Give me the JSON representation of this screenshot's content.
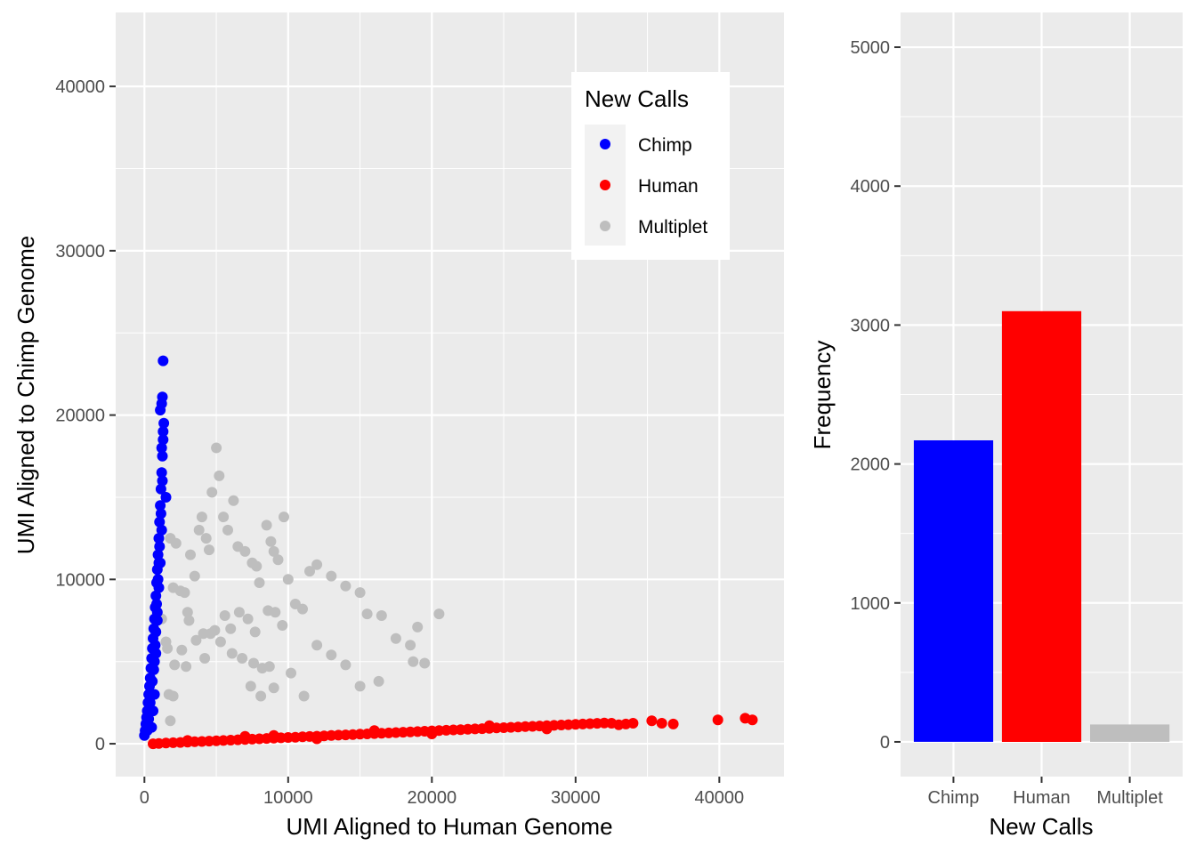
{
  "chart_data": [
    {
      "type": "scatter",
      "xlabel": "UMI Aligned to Human Genome",
      "ylabel": "UMI Aligned to Chimp Genome",
      "xlim": [
        -2000,
        44500
      ],
      "ylim": [
        -2000,
        44500
      ],
      "x_ticks": [
        0,
        10000,
        20000,
        30000,
        40000
      ],
      "y_ticks": [
        0,
        10000,
        20000,
        30000,
        40000
      ],
      "grid": true,
      "legend": {
        "title": "New Calls",
        "placement": "top-right",
        "entries": [
          "Chimp",
          "Human",
          "Multiplet"
        ]
      },
      "series": [
        {
          "name": "Chimp",
          "color": "#0000ff",
          "points": [
            [
              0,
              500
            ],
            [
              50,
              800
            ],
            [
              100,
              1200
            ],
            [
              150,
              1600
            ],
            [
              200,
              2000
            ],
            [
              250,
              2500
            ],
            [
              300,
              3000
            ],
            [
              350,
              3500
            ],
            [
              400,
              4000
            ],
            [
              450,
              4600
            ],
            [
              500,
              5200
            ],
            [
              550,
              5800
            ],
            [
              600,
              6400
            ],
            [
              650,
              7000
            ],
            [
              700,
              7600
            ],
            [
              750,
              8300
            ],
            [
              800,
              9000
            ],
            [
              850,
              9800
            ],
            [
              900,
              10600
            ],
            [
              950,
              11500
            ],
            [
              1000,
              12500
            ],
            [
              1050,
              13500
            ],
            [
              1100,
              14500
            ],
            [
              1150,
              15500
            ],
            [
              1200,
              16500
            ],
            [
              1250,
              17500
            ],
            [
              1300,
              18500
            ],
            [
              1350,
              19500
            ],
            [
              1100,
              20300
            ],
            [
              1200,
              20700
            ],
            [
              1250,
              21100
            ],
            [
              1300,
              23300
            ],
            [
              1500,
              15000
            ],
            [
              600,
              2000
            ],
            [
              700,
              3000
            ],
            [
              500,
              1000
            ],
            [
              800,
              5500
            ],
            [
              900,
              7500
            ],
            [
              1000,
              9500
            ],
            [
              1100,
              11000
            ],
            [
              1200,
              13000
            ],
            [
              300,
              1500
            ],
            [
              400,
              2500
            ],
            [
              650,
              4500
            ],
            [
              750,
              6000
            ],
            [
              850,
              8500
            ],
            [
              950,
              10000
            ],
            [
              1050,
              12000
            ],
            [
              1150,
              14000
            ],
            [
              1250,
              16000
            ],
            [
              1200,
              18000
            ],
            [
              1300,
              19000
            ],
            [
              200,
              800
            ],
            [
              450,
              3000
            ],
            [
              550,
              3800
            ],
            [
              700,
              5000
            ],
            [
              800,
              6800
            ],
            [
              900,
              8000
            ],
            [
              1000,
              11000
            ]
          ]
        },
        {
          "name": "Human",
          "color": "#ff0000",
          "points": [
            [
              600,
              0
            ],
            [
              1000,
              20
            ],
            [
              1500,
              40
            ],
            [
              2000,
              60
            ],
            [
              2500,
              80
            ],
            [
              3000,
              100
            ],
            [
              3500,
              120
            ],
            [
              4000,
              140
            ],
            [
              4500,
              160
            ],
            [
              5000,
              180
            ],
            [
              5500,
              200
            ],
            [
              6000,
              220
            ],
            [
              6500,
              240
            ],
            [
              7000,
              260
            ],
            [
              7500,
              280
            ],
            [
              8000,
              300
            ],
            [
              8500,
              320
            ],
            [
              9000,
              340
            ],
            [
              9500,
              360
            ],
            [
              10000,
              380
            ],
            [
              10500,
              400
            ],
            [
              11000,
              420
            ],
            [
              11500,
              440
            ],
            [
              12000,
              460
            ],
            [
              12500,
              480
            ],
            [
              13000,
              500
            ],
            [
              13500,
              520
            ],
            [
              14000,
              540
            ],
            [
              14500,
              560
            ],
            [
              15000,
              580
            ],
            [
              15500,
              600
            ],
            [
              16000,
              620
            ],
            [
              16500,
              640
            ],
            [
              17000,
              660
            ],
            [
              17500,
              680
            ],
            [
              18000,
              700
            ],
            [
              18500,
              720
            ],
            [
              19000,
              740
            ],
            [
              19500,
              760
            ],
            [
              20000,
              780
            ],
            [
              20500,
              800
            ],
            [
              21000,
              820
            ],
            [
              21500,
              840
            ],
            [
              22000,
              860
            ],
            [
              22500,
              880
            ],
            [
              23000,
              900
            ],
            [
              23500,
              920
            ],
            [
              24000,
              940
            ],
            [
              24500,
              960
            ],
            [
              25000,
              980
            ],
            [
              25500,
              1000
            ],
            [
              26000,
              1020
            ],
            [
              26500,
              1040
            ],
            [
              27000,
              1060
            ],
            [
              27500,
              1080
            ],
            [
              28000,
              1100
            ],
            [
              28500,
              1120
            ],
            [
              29000,
              1140
            ],
            [
              29500,
              1160
            ],
            [
              30000,
              1180
            ],
            [
              30500,
              1200
            ],
            [
              31000,
              1220
            ],
            [
              31500,
              1240
            ],
            [
              32000,
              1260
            ],
            [
              32500,
              1250
            ],
            [
              33000,
              1150
            ],
            [
              33500,
              1200
            ],
            [
              34000,
              1250
            ],
            [
              35300,
              1400
            ],
            [
              36000,
              1250
            ],
            [
              36800,
              1200
            ],
            [
              39900,
              1450
            ],
            [
              41800,
              1550
            ],
            [
              42300,
              1450
            ],
            [
              9000,
              500
            ],
            [
              12000,
              300
            ],
            [
              16000,
              800
            ],
            [
              20000,
              600
            ],
            [
              24000,
              1100
            ],
            [
              28000,
              900
            ],
            [
              7000,
              450
            ],
            [
              3000,
              200
            ]
          ]
        },
        {
          "name": "Multiplet",
          "color": "#bebebe",
          "points": [
            [
              1800,
              12500
            ],
            [
              2200,
              12200
            ],
            [
              2000,
              9500
            ],
            [
              2500,
              9300
            ],
            [
              2800,
              9200
            ],
            [
              3000,
              8000
            ],
            [
              3200,
              11500
            ],
            [
              3500,
              10200
            ],
            [
              3800,
              13000
            ],
            [
              4000,
              13800
            ],
            [
              4300,
              12500
            ],
            [
              4500,
              11800
            ],
            [
              4700,
              15300
            ],
            [
              5000,
              18000
            ],
            [
              5200,
              16300
            ],
            [
              5500,
              13800
            ],
            [
              5800,
              13000
            ],
            [
              6200,
              14800
            ],
            [
              6500,
              12000
            ],
            [
              7000,
              11700
            ],
            [
              7500,
              11000
            ],
            [
              7800,
              10800
            ],
            [
              8000,
              9800
            ],
            [
              8500,
              13300
            ],
            [
              8800,
              12300
            ],
            [
              9000,
              11700
            ],
            [
              9300,
              11200
            ],
            [
              9700,
              13800
            ],
            [
              10000,
              10000
            ],
            [
              10500,
              8500
            ],
            [
              11000,
              8200
            ],
            [
              11500,
              10500
            ],
            [
              12000,
              10900
            ],
            [
              13000,
              10200
            ],
            [
              14000,
              9600
            ],
            [
              15000,
              9200
            ],
            [
              15500,
              7900
            ],
            [
              16500,
              7800
            ],
            [
              17500,
              6400
            ],
            [
              18500,
              6000
            ],
            [
              19000,
              7100
            ],
            [
              20500,
              7900
            ],
            [
              4600,
              6700
            ],
            [
              4900,
              6900
            ],
            [
              5600,
              7800
            ],
            [
              6000,
              7000
            ],
            [
              6600,
              8000
            ],
            [
              7200,
              7600
            ],
            [
              7700,
              6800
            ],
            [
              8600,
              8100
            ],
            [
              9100,
              8000
            ],
            [
              9600,
              7200
            ],
            [
              2100,
              4800
            ],
            [
              2600,
              5700
            ],
            [
              3100,
              7500
            ],
            [
              3600,
              6300
            ],
            [
              4200,
              5200
            ],
            [
              5300,
              6200
            ],
            [
              6100,
              5500
            ],
            [
              6800,
              5200
            ],
            [
              7600,
              4900
            ],
            [
              8200,
              4600
            ],
            [
              9000,
              3400
            ],
            [
              10200,
              4300
            ],
            [
              11100,
              2900
            ],
            [
              12000,
              6000
            ],
            [
              13000,
              5400
            ],
            [
              14000,
              4800
            ],
            [
              15000,
              3500
            ],
            [
              16300,
              3800
            ],
            [
              18700,
              5000
            ],
            [
              19500,
              4900
            ],
            [
              1700,
              3000
            ],
            [
              1800,
              1400
            ],
            [
              2000,
              2900
            ],
            [
              1200,
              7600
            ],
            [
              1500,
              6200
            ],
            [
              1600,
              5800
            ],
            [
              2900,
              4700
            ],
            [
              7400,
              3500
            ],
            [
              8100,
              2900
            ],
            [
              8700,
              4700
            ],
            [
              4100,
              6700
            ]
          ]
        }
      ]
    },
    {
      "type": "bar",
      "xlabel": "New Calls",
      "ylabel": "Frequency",
      "categories": [
        "Chimp",
        "Human",
        "Multiplet"
      ],
      "values": [
        2170,
        3100,
        125
      ],
      "colors": [
        "#0000ff",
        "#ff0000",
        "#bebebe"
      ],
      "ylim": [
        -250,
        5250
      ],
      "y_ticks": [
        0,
        1000,
        2000,
        3000,
        4000,
        5000
      ],
      "grid": true
    }
  ]
}
